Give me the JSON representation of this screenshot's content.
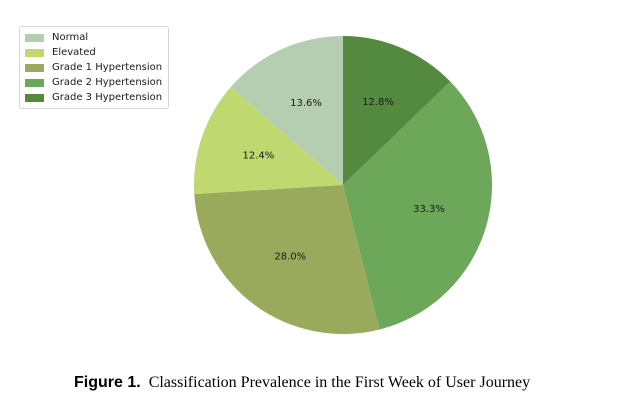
{
  "chart_data": {
    "type": "pie",
    "categories": [
      "Normal",
      "Elevated",
      "Grade 1 Hypertension",
      "Grade 2 Hypertension",
      "Grade 3 Hypertension"
    ],
    "values": [
      13.6,
      12.4,
      28.0,
      33.3,
      12.8
    ],
    "value_labels": [
      "13.6%",
      "12.4%",
      "28.0%",
      "33.3%",
      "12.8%"
    ],
    "colors": [
      "#b5cdb0",
      "#bfd870",
      "#9aaa5c",
      "#6ca75a",
      "#538a3f"
    ],
    "start_angle_deg": 90,
    "direction": "counterclockwise",
    "legend_position": "upper-left",
    "title": ""
  },
  "caption": {
    "prefix": "Figure 1.",
    "text": "Classification Prevalence in the First Week of User Journey"
  }
}
